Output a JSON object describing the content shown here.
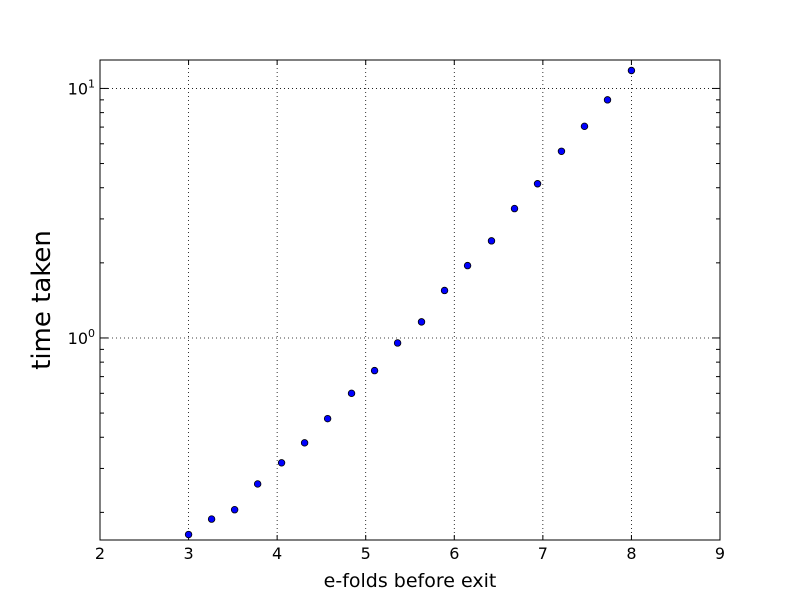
{
  "chart_data": {
    "type": "scatter",
    "title": "",
    "xlabel": "e-folds before exit",
    "ylabel": "time taken",
    "xlim": [
      2,
      9
    ],
    "ylim": [
      0.155,
      13.0
    ],
    "yscale": "log",
    "grid": true,
    "x_ticks": [
      2,
      3,
      4,
      5,
      6,
      7,
      8,
      9
    ],
    "x_tick_labels": [
      "2",
      "3",
      "4",
      "5",
      "6",
      "7",
      "8",
      "9"
    ],
    "y_ticks": [
      {
        "value": 1,
        "base": "10",
        "exp": "0"
      },
      {
        "value": 10,
        "base": "10",
        "exp": "1"
      }
    ],
    "marker_color": "#0000ff",
    "marker_edge": "#000000",
    "series": [
      {
        "x": [
          3.0,
          3.26,
          3.52,
          3.78,
          4.05,
          4.31,
          4.57,
          4.84,
          5.1,
          5.36,
          5.63,
          5.89,
          6.15,
          6.42,
          6.68,
          6.94,
          7.21,
          7.47,
          7.73,
          8.0
        ],
        "y": [
          0.163,
          0.188,
          0.205,
          0.26,
          0.316,
          0.38,
          0.475,
          0.6,
          0.74,
          0.955,
          1.16,
          1.55,
          1.95,
          2.45,
          3.3,
          4.15,
          5.6,
          7.05,
          9.0,
          11.8
        ]
      }
    ]
  }
}
